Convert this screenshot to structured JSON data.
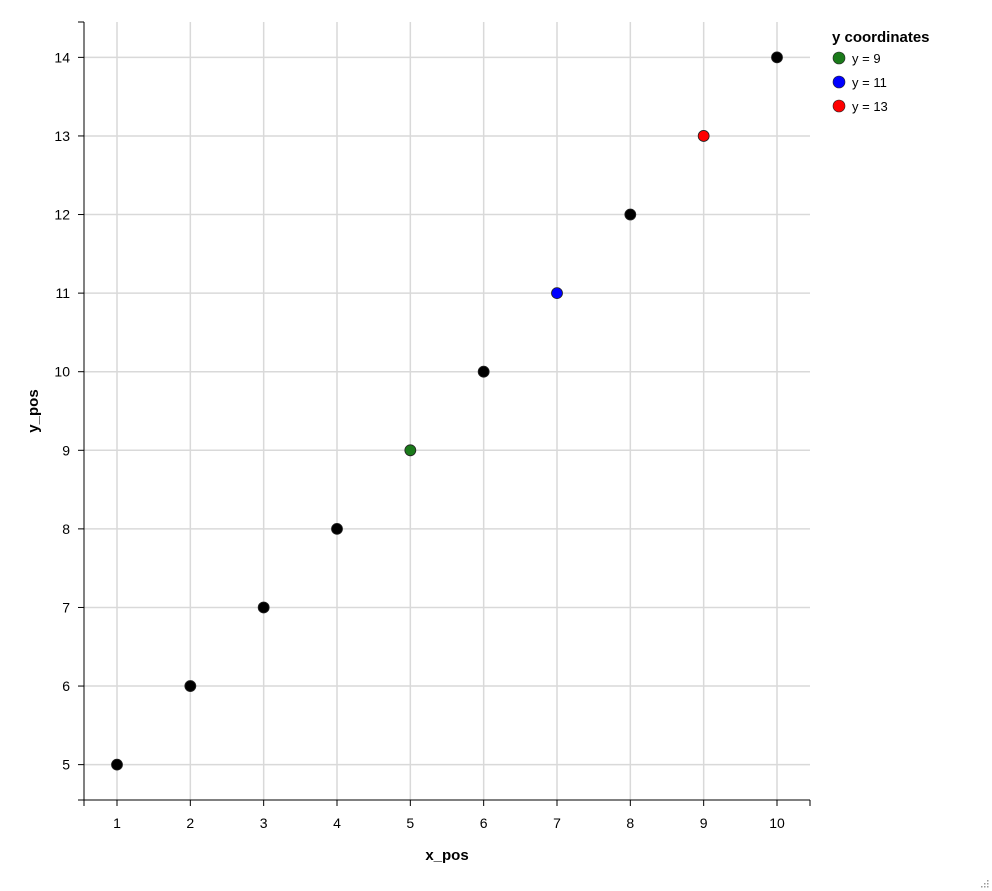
{
  "chart_data": {
    "type": "scatter",
    "title": "",
    "xlabel": "x_pos",
    "ylabel": "y_pos",
    "xlim": [
      0.55,
      10.45
    ],
    "ylim": [
      4.55,
      14.45
    ],
    "x_ticks": [
      1,
      2,
      3,
      4,
      5,
      6,
      7,
      8,
      9,
      10
    ],
    "y_ticks": [
      5,
      6,
      7,
      8,
      9,
      10,
      11,
      12,
      13,
      14
    ],
    "grid": true,
    "legend": {
      "title": "y coordinates",
      "placement": "top-right outside",
      "entries": [
        {
          "label": "y = 9",
          "color": "#1a7a1a"
        },
        {
          "label": "y = 11",
          "color": "#0000ff"
        },
        {
          "label": "y = 13",
          "color": "#ff0000"
        }
      ]
    },
    "default_color": "#000000",
    "points": [
      {
        "x": 1,
        "y": 5,
        "color": "#000000"
      },
      {
        "x": 2,
        "y": 6,
        "color": "#000000"
      },
      {
        "x": 3,
        "y": 7,
        "color": "#000000"
      },
      {
        "x": 4,
        "y": 8,
        "color": "#000000"
      },
      {
        "x": 5,
        "y": 9,
        "color": "#1a7a1a"
      },
      {
        "x": 6,
        "y": 10,
        "color": "#000000"
      },
      {
        "x": 7,
        "y": 11,
        "color": "#0000ff"
      },
      {
        "x": 8,
        "y": 12,
        "color": "#000000"
      },
      {
        "x": 9,
        "y": 13,
        "color": "#ff0000"
      },
      {
        "x": 10,
        "y": 14,
        "color": "#000000"
      }
    ]
  }
}
